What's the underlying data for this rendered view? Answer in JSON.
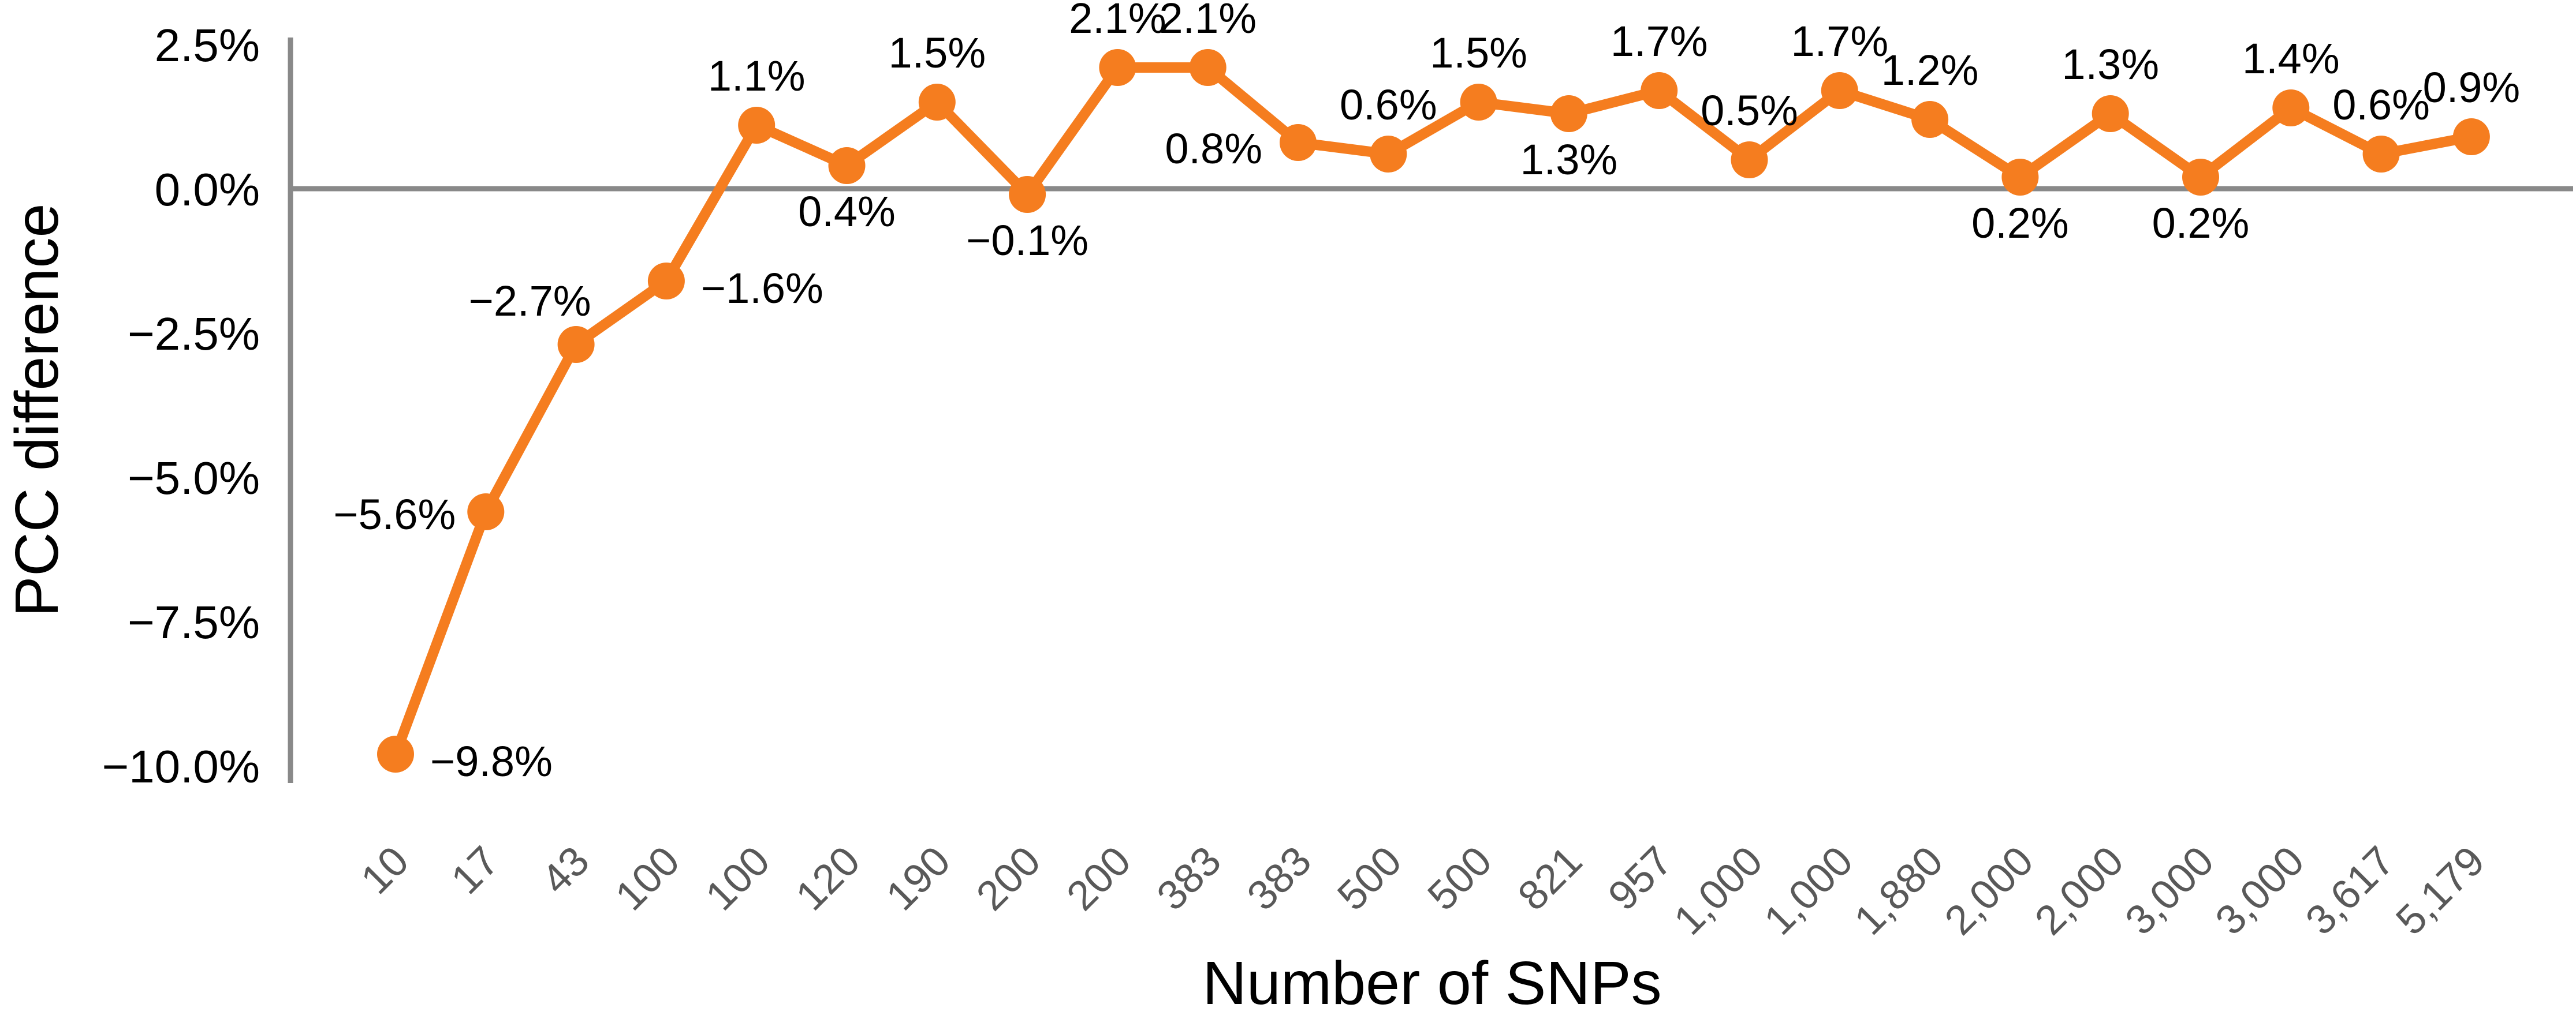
{
  "chart_data": {
    "type": "line",
    "title": "",
    "xlabel": "Number of SNPs",
    "ylabel": "PCC difference",
    "categories": [
      "10",
      "17",
      "43",
      "100",
      "100",
      "120",
      "190",
      "200",
      "200",
      "383",
      "383",
      "500",
      "500",
      "821",
      "957",
      "1,000",
      "1,000",
      "1,880",
      "2,000",
      "2,000",
      "3,000",
      "3,000",
      "3,617",
      "5,179"
    ],
    "values": [
      -9.8,
      -5.6,
      -2.7,
      -1.6,
      1.1,
      0.4,
      1.5,
      -0.1,
      2.1,
      2.1,
      0.8,
      0.6,
      1.5,
      1.3,
      1.7,
      0.5,
      1.7,
      1.2,
      0.2,
      1.3,
      0.2,
      1.4,
      0.6,
      0.9
    ],
    "point_labels": [
      "−9.8%",
      "−5.6%",
      "−2.7%",
      "−1.6%",
      "1.1%",
      "0.4%",
      "1.5%",
      "−0.1%",
      "2.1%",
      "2.1%",
      "0.8%",
      "0.6%",
      "1.5%",
      "1.3%",
      "1.7%",
      "0.5%",
      "1.7%",
      "1.2%",
      "0.2%",
      "1.3%",
      "0.2%",
      "1.4%",
      "0.6%",
      "0.9%"
    ],
    "label_placements": [
      "right",
      "left",
      "above-left",
      "right",
      "above",
      "below",
      "above",
      "below",
      "above",
      "above",
      "left-low",
      "above",
      "above",
      "below",
      "above",
      "above",
      "above",
      "above",
      "below",
      "above",
      "below",
      "above",
      "above",
      "above"
    ],
    "y_ticks": [
      {
        "label": "2.5%",
        "value": 2.5
      },
      {
        "label": "0.0%",
        "value": 0
      },
      {
        "label": "−2.5%",
        "value": -2.5
      },
      {
        "label": "−5.0%",
        "value": -5
      },
      {
        "label": "−7.5%",
        "value": -7.5
      },
      {
        "label": "−10.0%",
        "value": -10
      }
    ],
    "ylim": [
      -10.3,
      2.6
    ],
    "grid": false,
    "legend": "none",
    "marker": "circle",
    "colors": {
      "line": "#F57D1F",
      "marker": "#F57D1F",
      "axis": "#898989",
      "x_tick_text": "#595959",
      "y_tick_text": "#000000",
      "data_label_text": "#000000"
    }
  }
}
